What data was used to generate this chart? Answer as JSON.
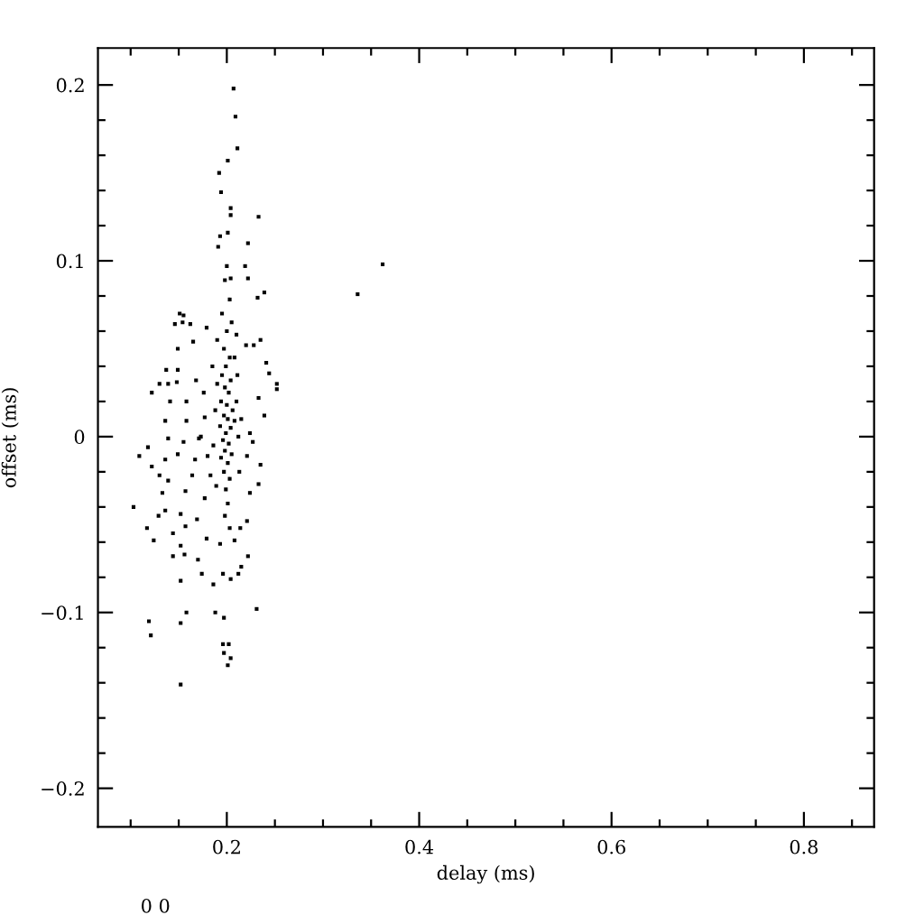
{
  "chart_data": {
    "type": "scatter",
    "xlabel": "delay (ms)",
    "ylabel": "offset (ms)",
    "annotations": [
      "0 0"
    ],
    "marker": "square",
    "grid": false,
    "xlim": [
      0.066,
      0.873
    ],
    "ylim": [
      -0.222,
      0.221
    ],
    "xticks": [
      {
        "value": 0.1,
        "label": null
      },
      {
        "value": 0.15,
        "label": null
      },
      0.2,
      {
        "value": 0.25,
        "label": null
      },
      {
        "value": 0.3,
        "label": null
      },
      {
        "value": 0.35,
        "label": null
      },
      0.4,
      {
        "value": 0.45,
        "label": null
      },
      {
        "value": 0.5,
        "label": null
      },
      {
        "value": 0.55,
        "label": null
      },
      0.6,
      {
        "value": 0.65,
        "label": null
      },
      {
        "value": 0.7,
        "label": null
      },
      {
        "value": 0.75,
        "label": null
      },
      0.8,
      {
        "value": 0.85,
        "label": null
      }
    ],
    "yticks": [
      {
        "value": -0.2,
        "label": "−0.2"
      },
      {
        "value": -0.18,
        "label": null
      },
      {
        "value": -0.16,
        "label": null
      },
      {
        "value": -0.14,
        "label": null
      },
      {
        "value": -0.12,
        "label": null
      },
      {
        "value": -0.1,
        "label": "−0.1"
      },
      {
        "value": -0.08,
        "label": null
      },
      {
        "value": -0.06,
        "label": null
      },
      {
        "value": -0.04,
        "label": null
      },
      {
        "value": -0.02,
        "label": null
      },
      0,
      {
        "value": 0.02,
        "label": null
      },
      {
        "value": 0.04,
        "label": null
      },
      {
        "value": 0.06,
        "label": null
      },
      {
        "value": 0.08,
        "label": null
      },
      0.1,
      {
        "value": 0.12,
        "label": null
      },
      {
        "value": 0.14,
        "label": null
      },
      {
        "value": 0.16,
        "label": null
      },
      {
        "value": 0.18,
        "label": null
      },
      0.2
    ],
    "series": [
      {
        "color": "#000000",
        "x": [
          0.207,
          0.209,
          0.211,
          0.201,
          0.192,
          0.194,
          0.204,
          0.204,
          0.233,
          0.193,
          0.201,
          0.222,
          0.191,
          0.2,
          0.219,
          0.222,
          0.198,
          0.204,
          0.239,
          0.232,
          0.362,
          0.336,
          0.203,
          0.151,
          0.155,
          0.146,
          0.154,
          0.162,
          0.179,
          0.149,
          0.165,
          0.235,
          0.228,
          0.22,
          0.241,
          0.244,
          0.252,
          0.252,
          0.137,
          0.149,
          0.13,
          0.139,
          0.148,
          0.122,
          0.141,
          0.158,
          0.233,
          0.239,
          0.118,
          0.103,
          0.109,
          0.122,
          0.117,
          0.124,
          0.119,
          0.121,
          0.152,
          0.152,
          0.158,
          0.188,
          0.197,
          0.231,
          0.196,
          0.202,
          0.197,
          0.204,
          0.201,
          0.152,
          0.186,
          0.174,
          0.196,
          0.204,
          0.212,
          0.215,
          0.222,
          0.144,
          0.156,
          0.17,
          0.179,
          0.193,
          0.208,
          0.144,
          0.152,
          0.157,
          0.221,
          0.214,
          0.136,
          0.129,
          0.152,
          0.169,
          0.133,
          0.157,
          0.177,
          0.224,
          0.233,
          0.235,
          0.13,
          0.139,
          0.164,
          0.183,
          0.136,
          0.149,
          0.167,
          0.18,
          0.221,
          0.139,
          0.155,
          0.171,
          0.224,
          0.227,
          0.136,
          0.158,
          0.177,
          0.208,
          0.2,
          0.197,
          0.203,
          0.199,
          0.195,
          0.204,
          0.198,
          0.202,
          0.194,
          0.2,
          0.206,
          0.197,
          0.201,
          0.193,
          0.204,
          0.199,
          0.196,
          0.202,
          0.198,
          0.205,
          0.194,
          0.201,
          0.197,
          0.203,
          0.199,
          0.201,
          0.198,
          0.203,
          0.188,
          0.21,
          0.186,
          0.212,
          0.19,
          0.211,
          0.185,
          0.208,
          0.213,
          0.189,
          0.176,
          0.168,
          0.173,
          0.215,
          0.195,
          0.205,
          0.19,
          0.21
        ],
        "values": [
          0.198,
          0.182,
          0.164,
          0.157,
          0.15,
          0.139,
          0.13,
          0.126,
          0.125,
          0.114,
          0.116,
          0.11,
          0.108,
          0.097,
          0.097,
          0.09,
          0.089,
          0.09,
          0.082,
          0.079,
          0.098,
          0.081,
          0.078,
          0.07,
          0.069,
          0.064,
          0.065,
          0.064,
          0.062,
          0.05,
          0.054,
          0.055,
          0.052,
          0.052,
          0.042,
          0.036,
          0.03,
          0.027,
          0.038,
          0.038,
          0.03,
          0.03,
          0.031,
          0.025,
          0.02,
          0.02,
          0.022,
          0.012,
          -0.006,
          -0.04,
          -0.011,
          -0.017,
          -0.052,
          -0.059,
          -0.105,
          -0.113,
          -0.141,
          -0.106,
          -0.1,
          -0.1,
          -0.103,
          -0.098,
          -0.118,
          -0.118,
          -0.123,
          -0.126,
          -0.13,
          -0.082,
          -0.084,
          -0.078,
          -0.078,
          -0.081,
          -0.078,
          -0.074,
          -0.068,
          -0.068,
          -0.067,
          -0.07,
          -0.058,
          -0.061,
          -0.059,
          -0.055,
          -0.062,
          -0.051,
          -0.048,
          -0.052,
          -0.042,
          -0.045,
          -0.044,
          -0.047,
          -0.032,
          -0.031,
          -0.035,
          -0.032,
          -0.027,
          -0.016,
          -0.022,
          -0.025,
          -0.022,
          -0.022,
          -0.013,
          -0.01,
          -0.013,
          -0.011,
          -0.011,
          -0.001,
          -0.003,
          -0.001,
          0.002,
          -0.003,
          0.009,
          0.009,
          0.011,
          0.009,
          0.06,
          0.05,
          0.045,
          0.04,
          0.035,
          0.032,
          0.028,
          0.025,
          0.02,
          0.018,
          0.015,
          0.012,
          0.01,
          0.006,
          0.005,
          0.002,
          -0.002,
          -0.004,
          -0.008,
          -0.01,
          -0.012,
          -0.015,
          -0.02,
          -0.024,
          -0.03,
          -0.038,
          -0.045,
          -0.052,
          0.015,
          0.02,
          -0.005,
          0.0,
          0.03,
          0.035,
          0.04,
          0.045,
          -0.02,
          -0.028,
          0.025,
          0.032,
          0.0,
          0.01,
          0.07,
          0.065,
          0.055,
          0.058
        ]
      }
    ]
  }
}
